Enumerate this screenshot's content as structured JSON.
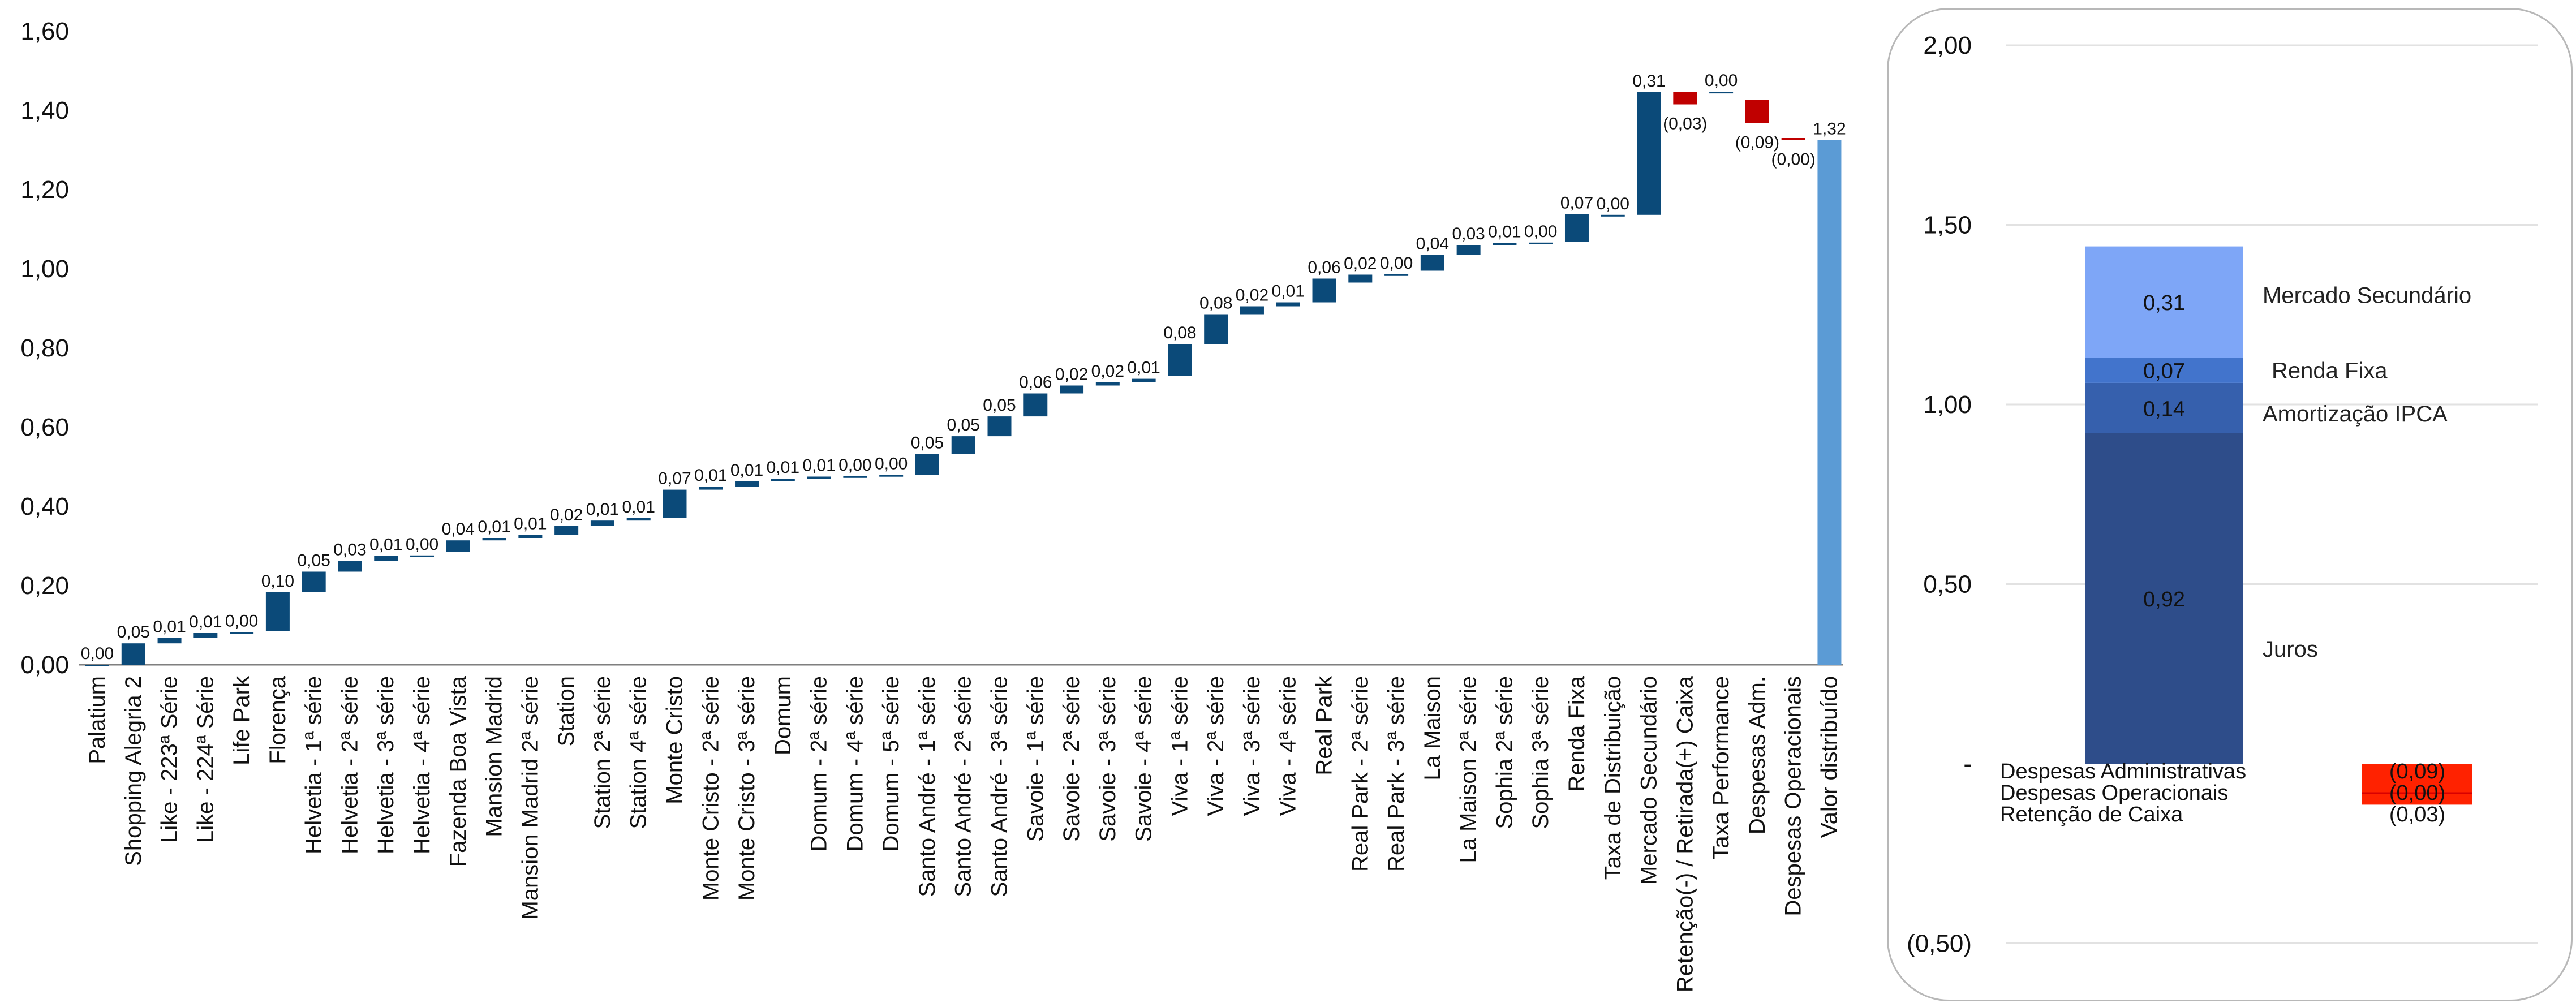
{
  "chart_data": [
    {
      "type": "bar",
      "subtype": "waterfall",
      "title": "",
      "xlabel": "",
      "ylabel": "",
      "ylim": [
        0,
        1.6
      ],
      "yticks": [
        "0,00",
        "0,20",
        "0,40",
        "0,60",
        "0,80",
        "1,00",
        "1,20",
        "1,40",
        "1,60"
      ],
      "grid": false,
      "colors": {
        "increase": "#0b4a79",
        "decrease": "#c00000",
        "total": "#5b9bd5"
      },
      "categories": [
        "Palatium",
        "Shopping Alegria 2",
        "Like - 223ª Série",
        "Like - 224ª Série",
        "Life Park",
        "Florença",
        "Helvetia - 1ª série",
        "Helvetia - 2ª série",
        "Helvetia - 3ª série",
        "Helvetia - 4ª série",
        "Fazenda Boa Vista",
        "Mansion Madrid",
        "Mansion Madrid 2ª série",
        "Station",
        "Station 2ª série",
        "Station 4ª série",
        "Monte Cristo",
        "Monte Cristo - 2ª série",
        "Monte Cristo - 3ª série",
        "Domum",
        "Domum - 2ª série",
        "Domum - 4ª série",
        "Domum - 5ª série",
        "Santo André - 1ª série",
        "Santo André - 2ª série",
        "Santo André - 3ª série",
        "Savoie - 1ª série",
        "Savoie - 2ª série",
        "Savoie - 3ª série",
        "Savoie - 4ª série",
        "Viva - 1ª série",
        "Viva - 2ª série",
        "Viva - 3ª série",
        "Viva - 4ª série",
        "Real Park",
        "Real Park - 2ª série",
        "Real Park - 3ª série",
        "La Maison",
        "La Maison 2ª série",
        "Sophia 2ª série",
        "Sophia 3ª série",
        "Renda Fixa",
        "Taxa de Distribuição",
        "Mercado Secundário",
        "Retenção(-) / Retirada(+) Caixa",
        "Taxa Performance",
        "Despesas Adm.",
        "Despesas Operacionais",
        "Valor distribuído"
      ],
      "values": [
        0.0,
        0.05,
        0.01,
        0.01,
        0.0,
        0.1,
        0.05,
        0.03,
        0.01,
        0.0,
        0.04,
        0.01,
        0.01,
        0.02,
        0.01,
        0.01,
        0.07,
        0.01,
        0.01,
        0.01,
        0.01,
        0.0,
        0.0,
        0.05,
        0.05,
        0.05,
        0.06,
        0.02,
        0.02,
        0.01,
        0.08,
        0.08,
        0.02,
        0.01,
        0.06,
        0.02,
        0.0,
        0.04,
        0.03,
        0.01,
        0.0,
        0.07,
        0.0,
        0.31,
        -0.03,
        0.0,
        -0.09,
        0.0,
        1.32
      ],
      "value_labels": [
        "0,00",
        "0,05",
        "0,01",
        "0,01",
        "0,00",
        "0,10",
        "0,05",
        "0,03",
        "0,01",
        "0,00",
        "0,04",
        "0,01",
        "0,01",
        "0,02",
        "0,01",
        "0,01",
        "0,07",
        "0,01",
        "0,01",
        "0,01",
        "0,01",
        "0,00",
        "0,00",
        "0,05",
        "0,05",
        "0,05",
        "0,06",
        "0,02",
        "0,02",
        "0,01",
        "0,08",
        "0,08",
        "0,02",
        "0,01",
        "0,06",
        "0,02",
        "0,00",
        "0,04",
        "0,03",
        "0,01",
        "0,00",
        "0,07",
        "0,00",
        "0,31",
        "(0,03)",
        "0,00",
        "(0,09)",
        "(0,00)",
        "1,32"
      ],
      "bar_bottoms": [
        0.0,
        0.0,
        0.054,
        0.068,
        0.08,
        0.085,
        0.183,
        0.235,
        0.262,
        0.275,
        0.285,
        0.314,
        0.32,
        0.328,
        0.35,
        0.364,
        0.37,
        0.442,
        0.45,
        0.463,
        0.47,
        0.475,
        0.478,
        0.48,
        0.532,
        0.577,
        0.627,
        0.685,
        0.705,
        0.713,
        0.73,
        0.81,
        0.885,
        0.905,
        0.915,
        0.965,
        0.985,
        0.995,
        1.035,
        1.06,
        1.065,
        1.068,
        1.133,
        1.136,
        1.415,
        1.447,
        1.368,
        1.325,
        0.0
      ],
      "bar_tops": [
        0.0,
        0.054,
        0.068,
        0.08,
        0.082,
        0.183,
        0.235,
        0.262,
        0.275,
        0.276,
        0.314,
        0.32,
        0.328,
        0.35,
        0.364,
        0.37,
        0.442,
        0.45,
        0.463,
        0.47,
        0.475,
        0.476,
        0.479,
        0.532,
        0.577,
        0.627,
        0.685,
        0.705,
        0.713,
        0.722,
        0.81,
        0.885,
        0.905,
        0.915,
        0.975,
        0.985,
        0.986,
        1.035,
        1.06,
        1.065,
        1.066,
        1.138,
        1.136,
        1.446,
        1.446,
        1.447,
        1.426,
        1.33,
        1.325
      ],
      "kinds": [
        "inc",
        "inc",
        "inc",
        "inc",
        "inc",
        "inc",
        "inc",
        "inc",
        "inc",
        "inc",
        "inc",
        "inc",
        "inc",
        "inc",
        "inc",
        "inc",
        "inc",
        "inc",
        "inc",
        "inc",
        "inc",
        "inc",
        "inc",
        "inc",
        "inc",
        "inc",
        "inc",
        "inc",
        "inc",
        "inc",
        "inc",
        "inc",
        "inc",
        "inc",
        "inc",
        "inc",
        "inc",
        "inc",
        "inc",
        "inc",
        "inc",
        "inc",
        "inc",
        "inc",
        "dec",
        "inc",
        "dec",
        "dec",
        "total"
      ]
    },
    {
      "type": "bar",
      "subtype": "stacked",
      "title": "",
      "xlabel": "",
      "ylabel": "",
      "ylim": [
        -0.5,
        2.0
      ],
      "yticks": [
        "(0,50)",
        "-",
        "0,50",
        "1,00",
        "1,50",
        "2,00"
      ],
      "grid": true,
      "positive_stack": [
        {
          "name": "Juros",
          "value": 0.92,
          "label": "0,92",
          "color": "#2e4d8a"
        },
        {
          "name": "Amortização IPCA",
          "value": 0.14,
          "label": "0,14",
          "color": "#3660ad"
        },
        {
          "name": "Renda Fixa",
          "value": 0.07,
          "label": "0,07",
          "color": "#4274cc"
        },
        {
          "name": "Mercado Secundário",
          "value": 0.31,
          "label": "0,31",
          "color": "#7ea6f7"
        }
      ],
      "negative_stack": [
        {
          "name": "Despesas Administrativas",
          "value": -0.09,
          "label": "(0,09)",
          "color": "#ff2a00"
        },
        {
          "name": "Despesas Operacionais",
          "value": -0.0,
          "label": "(0,00)",
          "color": "#e60000"
        },
        {
          "name": "Retenção de Caixa",
          "value": -0.03,
          "label": "(0,03)",
          "color": "#ff4000"
        }
      ]
    }
  ]
}
